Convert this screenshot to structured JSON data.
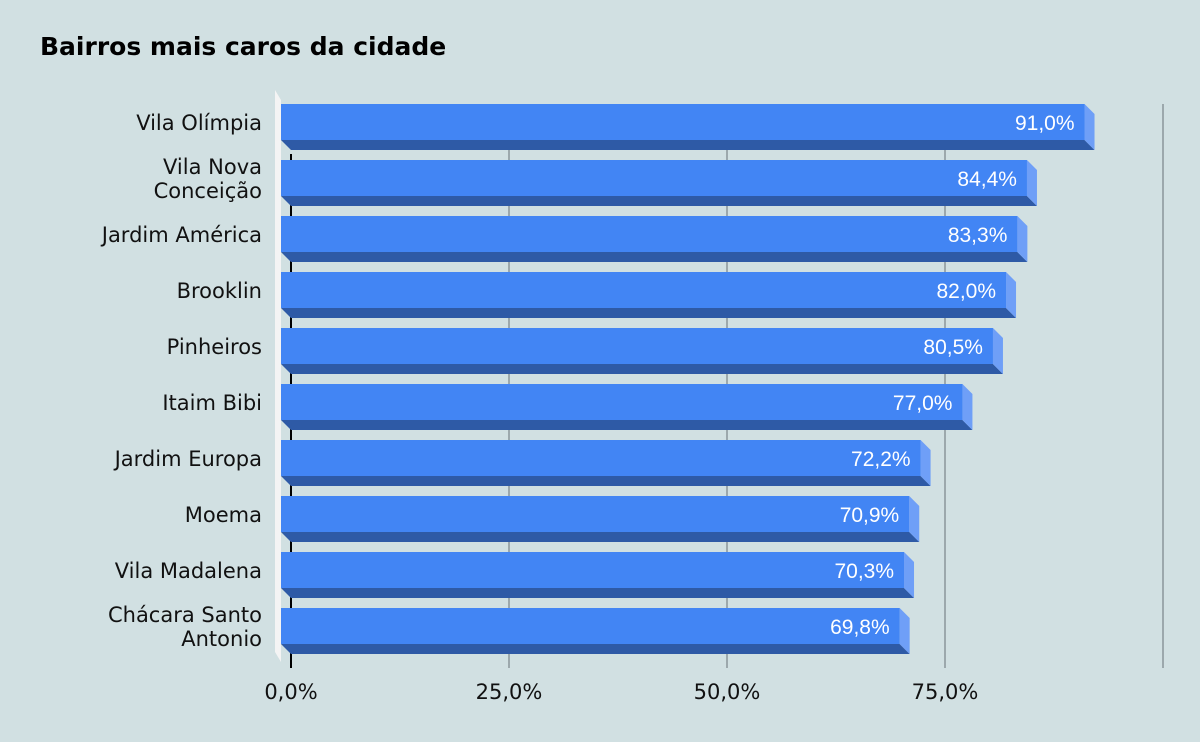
{
  "chart_data": {
    "type": "bar",
    "orientation": "horizontal",
    "title": "Bairros mais caros da cidade",
    "categories": [
      [
        "Vila Olímpia"
      ],
      [
        "Vila Nova",
        "Conceição"
      ],
      [
        "Jardim América"
      ],
      [
        "Brooklin"
      ],
      [
        "Pinheiros"
      ],
      [
        "Itaim Bibi"
      ],
      [
        "Jardim Europa"
      ],
      [
        "Moema"
      ],
      [
        "Vila Madalena"
      ],
      [
        "Chácara Santo",
        "Antonio"
      ]
    ],
    "values": [
      91.0,
      84.4,
      83.3,
      82.0,
      80.5,
      77.0,
      72.2,
      70.9,
      70.3,
      69.8
    ],
    "value_labels": [
      "91,0%",
      "84,4%",
      "83,3%",
      "82,0%",
      "80,5%",
      "77,0%",
      "72,2%",
      "70,9%",
      "70,3%",
      "69,8%"
    ],
    "x_ticks": [
      0,
      25,
      50,
      75,
      100
    ],
    "x_tick_labels": [
      "0,0%",
      "25,0%",
      "50,0%",
      "75,0%",
      ""
    ],
    "xlim": [
      0,
      100
    ],
    "xlabel": "",
    "ylabel": "",
    "grid": true,
    "legend": "none",
    "colors": {
      "background": "#d1e0e2",
      "bar_front": "#4285f4",
      "bar_bottom": "#2e5aa6",
      "bar_side": "#6f9ff7",
      "gridline": "#8a9699",
      "axis": "#000000",
      "floor": "#f4f4f4"
    }
  }
}
